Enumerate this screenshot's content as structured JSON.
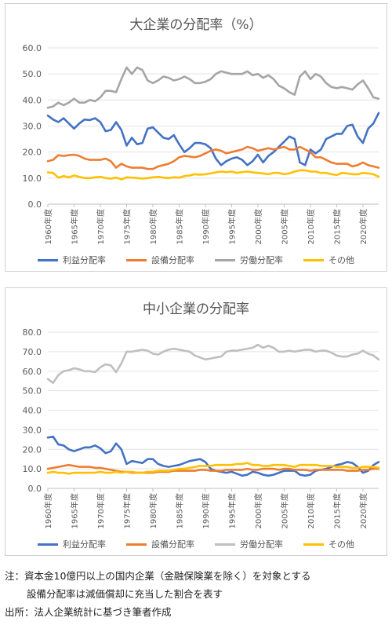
{
  "chart_data": [
    {
      "type": "line",
      "title": "大企業の分配率（%）",
      "ylim": [
        0,
        60
      ],
      "yticks": [
        "0.0",
        "10.0",
        "20.0",
        "30.0",
        "40.0",
        "50.0",
        "60.0"
      ],
      "grid": true,
      "legend": "bottom",
      "x": [
        1960,
        1961,
        1962,
        1963,
        1964,
        1965,
        1966,
        1967,
        1968,
        1969,
        1970,
        1971,
        1972,
        1973,
        1974,
        1975,
        1976,
        1977,
        1978,
        1979,
        1980,
        1981,
        1982,
        1983,
        1984,
        1985,
        1986,
        1987,
        1988,
        1989,
        1990,
        1991,
        1992,
        1993,
        1994,
        1995,
        1996,
        1997,
        1998,
        1999,
        2000,
        2001,
        2002,
        2003,
        2004,
        2005,
        2006,
        2007,
        2008,
        2009,
        2010,
        2011,
        2012,
        2013,
        2014,
        2015,
        2016,
        2017,
        2018,
        2019,
        2020,
        2021,
        2022,
        2023
      ],
      "xticks": [
        "1960年度",
        "1965年度",
        "1970年度",
        "1975年度",
        "1980年度",
        "1985年度",
        "1990年度",
        "1995年度",
        "2000年度",
        "2005年度",
        "2010年度",
        "2015年度",
        "2020年度"
      ],
      "series": [
        {
          "name": "利益分配率",
          "color": "#4472c4",
          "values": [
            34,
            32.5,
            31.5,
            33,
            31,
            29,
            31,
            32.5,
            32.3,
            33,
            31.5,
            28,
            28.5,
            31.5,
            28.5,
            22.5,
            25.5,
            23,
            23.5,
            29,
            29.5,
            27.5,
            25.5,
            25,
            26.5,
            23,
            20,
            21.5,
            23.5,
            23.5,
            23,
            21.5,
            17.5,
            15,
            16.5,
            17.5,
            18,
            17,
            15,
            16.5,
            19,
            16,
            18.5,
            20,
            22,
            24,
            26,
            25,
            16,
            15,
            21,
            19.5,
            21,
            25,
            26,
            27,
            27,
            30,
            30.5,
            26,
            23.5,
            29,
            31,
            35
          ]
        },
        {
          "name": "設備分配率",
          "color": "#ed7d31",
          "values": [
            16.5,
            17,
            18.8,
            18.5,
            18.8,
            19,
            18.5,
            17.5,
            17,
            17,
            17,
            17.5,
            16.5,
            14,
            15.5,
            14.5,
            14,
            14,
            14,
            13.5,
            13.5,
            14.5,
            15,
            15.5,
            16.5,
            18,
            18.5,
            18.3,
            18,
            18.5,
            19.5,
            20.5,
            21,
            20.5,
            19.5,
            20,
            20.5,
            21,
            22,
            21.5,
            20.5,
            21,
            21.5,
            21,
            21.5,
            22,
            21,
            21,
            22,
            21,
            20,
            18,
            18,
            17,
            16,
            15.5,
            15.5,
            15.5,
            14.5,
            15,
            16,
            15,
            14.5,
            14
          ]
        },
        {
          "name": "労働分配率",
          "color": "#a5a5a5",
          "values": [
            37,
            37.5,
            39,
            38,
            39,
            40.5,
            39,
            39,
            40,
            39.5,
            41,
            43.5,
            43.5,
            43,
            48,
            52.5,
            50,
            52.5,
            51.5,
            47.5,
            46.5,
            47.5,
            49,
            48.5,
            47.5,
            48,
            49,
            48,
            46.5,
            46.5,
            47,
            48,
            50,
            51,
            50.5,
            50,
            50,
            50,
            51,
            49.5,
            50,
            48.5,
            49.5,
            48,
            45.5,
            44.5,
            43,
            42,
            49,
            51,
            48,
            50,
            49,
            46.5,
            45,
            44.5,
            45,
            44.5,
            44,
            46,
            47.5,
            44.5,
            41,
            40.5
          ]
        },
        {
          "name": "その他",
          "color": "#ffc000",
          "values": [
            12.2,
            12,
            10.2,
            10.8,
            10.3,
            11,
            10.5,
            10,
            10,
            10.3,
            10.5,
            10,
            9.8,
            10.2,
            9.5,
            10.3,
            10.2,
            10,
            9.8,
            10,
            10.3,
            10.5,
            10.2,
            10,
            10.3,
            10.2,
            10.8,
            11,
            11.5,
            11.3,
            11.5,
            11.8,
            12.2,
            12.5,
            12.3,
            12.5,
            12,
            12.3,
            12.5,
            12.2,
            12,
            11.8,
            11.5,
            12,
            12,
            11.5,
            11.8,
            12.5,
            13,
            13,
            12.5,
            12.5,
            12,
            12,
            11.5,
            11.2,
            12,
            11.8,
            11.5,
            11.5,
            12,
            11.8,
            11.5,
            10.5
          ]
        }
      ]
    },
    {
      "type": "line",
      "title": "中小企業の分配率",
      "ylim": [
        0,
        80
      ],
      "yticks": [
        "0.0",
        "10.0",
        "20.0",
        "30.0",
        "40.0",
        "50.0",
        "60.0",
        "70.0",
        "80.0"
      ],
      "grid": true,
      "legend": "bottom",
      "x": [
        1960,
        1961,
        1962,
        1963,
        1964,
        1965,
        1966,
        1967,
        1968,
        1969,
        1970,
        1971,
        1972,
        1973,
        1974,
        1975,
        1976,
        1977,
        1978,
        1979,
        1980,
        1981,
        1982,
        1983,
        1984,
        1985,
        1986,
        1987,
        1988,
        1989,
        1990,
        1991,
        1992,
        1993,
        1994,
        1995,
        1996,
        1997,
        1998,
        1999,
        2000,
        2001,
        2002,
        2003,
        2004,
        2005,
        2006,
        2007,
        2008,
        2009,
        2010,
        2011,
        2012,
        2013,
        2014,
        2015,
        2016,
        2017,
        2018,
        2019,
        2020,
        2021,
        2022,
        2023
      ],
      "xticks": [
        "1960年度",
        "1965年度",
        "1970年度",
        "1975年度",
        "1980年度",
        "1985年度",
        "1990年度",
        "1995年度",
        "2000年度",
        "2005年度",
        "2010年度",
        "2015年度",
        "2020年度"
      ],
      "series": [
        {
          "name": "利益分配率",
          "color": "#4472c4",
          "values": [
            26,
            26.5,
            22.5,
            22,
            20,
            19,
            20,
            21,
            21,
            22,
            20.5,
            18,
            19,
            23,
            20,
            12.5,
            14,
            13.5,
            13,
            15,
            15,
            12.5,
            11.5,
            11,
            11.5,
            12,
            13,
            14,
            14.5,
            15,
            13.5,
            10,
            9,
            8.5,
            8,
            8.5,
            7.5,
            6.5,
            7,
            8.5,
            8,
            7,
            6.5,
            7,
            8,
            9,
            9,
            9,
            7,
            6.5,
            7,
            9,
            9.5,
            10,
            11,
            12,
            12.5,
            13.5,
            13,
            11,
            8,
            9,
            12,
            13.5
          ]
        },
        {
          "name": "設備分配率",
          "color": "#ed7d31",
          "values": [
            10,
            10.5,
            11,
            11.5,
            12,
            11.5,
            11,
            11,
            11,
            10.5,
            10.5,
            10,
            9.5,
            9,
            8.5,
            8.5,
            8,
            8,
            8,
            8,
            8,
            8.5,
            8.5,
            8.5,
            9,
            9,
            9,
            9,
            9,
            9.5,
            9.5,
            9,
            9,
            9,
            9.5,
            9.5,
            9.5,
            9.5,
            10,
            9.5,
            9.5,
            10,
            10,
            10,
            9.5,
            10,
            10,
            9.5,
            9.5,
            9.5,
            9,
            9.5,
            9.5,
            9.5,
            9.5,
            9.5,
            9.5,
            9,
            9,
            9,
            9.5,
            9.5,
            10,
            10
          ]
        },
        {
          "name": "労働分配率",
          "color": "#bfbfbf",
          "values": [
            56,
            54,
            58,
            60,
            60.5,
            61.5,
            61,
            60,
            60,
            59.5,
            62,
            63.5,
            63,
            59.5,
            64,
            70,
            70,
            70.5,
            71,
            70.5,
            69,
            68.5,
            70,
            71,
            71.5,
            71,
            70.5,
            70,
            68,
            67,
            66,
            66.5,
            67,
            67.5,
            70,
            70.5,
            70.5,
            71,
            71.5,
            72,
            73.5,
            72,
            73,
            72,
            70,
            70,
            70.5,
            70,
            70.5,
            71,
            71,
            70,
            70.5,
            70.5,
            69.5,
            68,
            67.5,
            67.5,
            68.5,
            69,
            70.5,
            69,
            68,
            66
          ]
        },
        {
          "name": "その他",
          "color": "#ffc000",
          "values": [
            8,
            8.5,
            8,
            8,
            7.5,
            8,
            8,
            8,
            8,
            8,
            8.5,
            8,
            8,
            8.5,
            8,
            8.5,
            8.5,
            8,
            8,
            8.5,
            8.5,
            9,
            9,
            9,
            9.5,
            10,
            10,
            10.5,
            11,
            11.5,
            11.5,
            11.5,
            12,
            12,
            12,
            12,
            12.5,
            12.5,
            13,
            12,
            12,
            11.5,
            11.5,
            12,
            12,
            12,
            11.5,
            11,
            12,
            12,
            12,
            12,
            11.5,
            11.5,
            11.5,
            11,
            11,
            11,
            10.5,
            10.5,
            11,
            11,
            11,
            10.5
          ]
        }
      ]
    }
  ],
  "notes": {
    "line1": "注：資本金10億円以上の国内企業（金融保険業を除く）を対象とする",
    "line2": "設備分配率は減価償却に充当した割合を表す",
    "line3": "出所：法人企業統計に基づき筆者作成"
  }
}
